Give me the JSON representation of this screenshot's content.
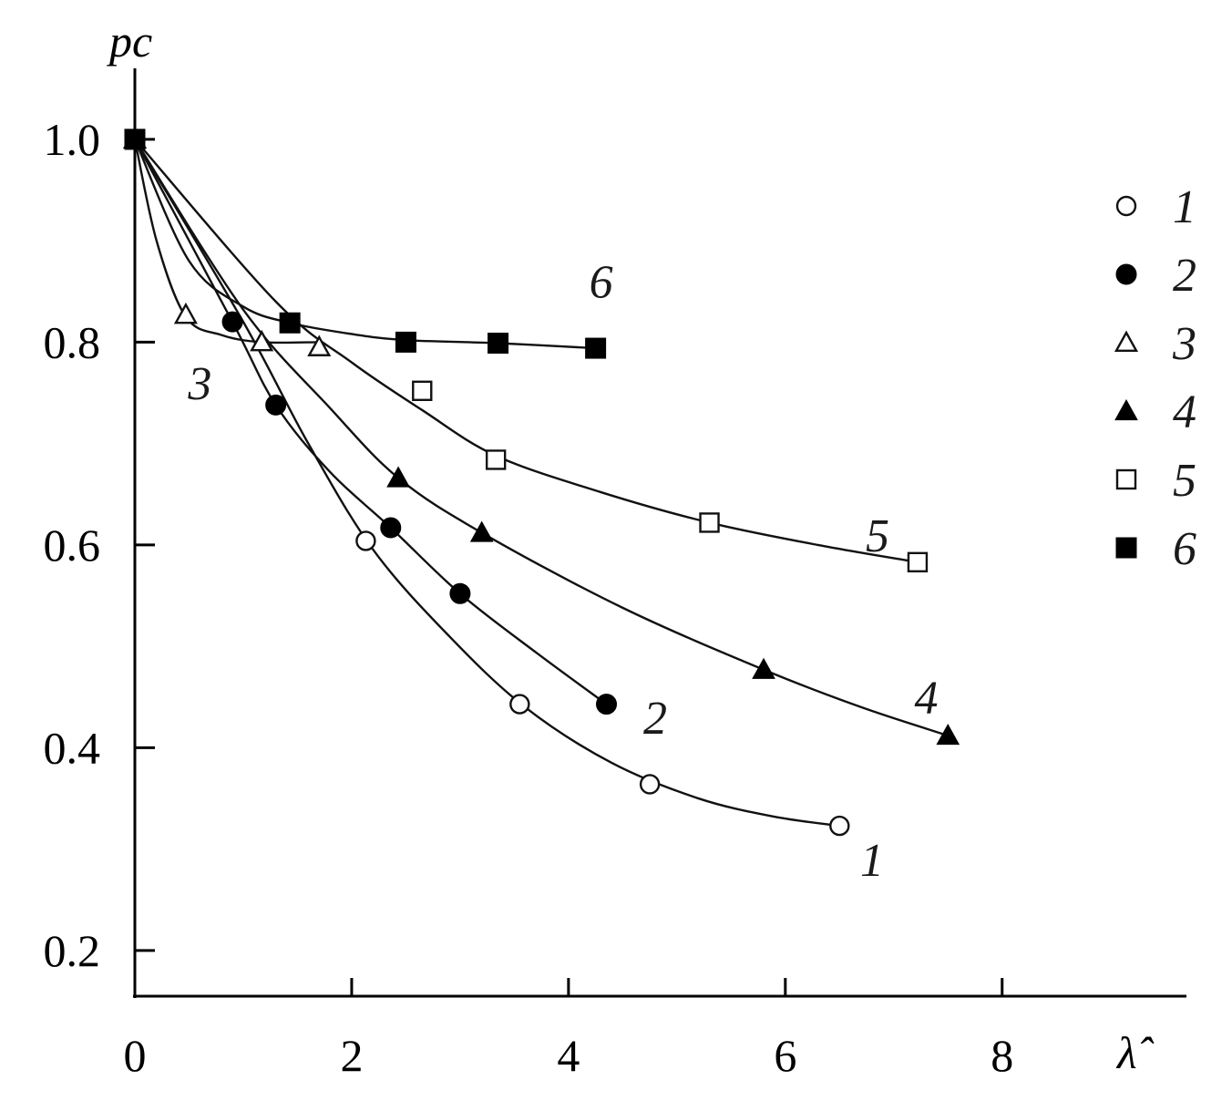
{
  "chart_data": {
    "type": "scatter",
    "xlabel": "λ̂",
    "ylabel": "pc",
    "xlim": [
      0,
      9.7
    ],
    "ylim": [
      0.155,
      1.07
    ],
    "x_ticks": [
      "0",
      "2",
      "4",
      "6",
      "8"
    ],
    "y_ticks": [
      "0.2",
      "0.4",
      "0.6",
      "0.8",
      "1.0"
    ],
    "legend_position": "right",
    "series": [
      {
        "name": "1",
        "marker": "open-circle",
        "points": [
          [
            0,
            1.0
          ],
          [
            2.13,
            0.604
          ],
          [
            3.55,
            0.443
          ],
          [
            4.75,
            0.364
          ],
          [
            6.5,
            0.323
          ]
        ],
        "curve": [
          [
            0,
            1.0
          ],
          [
            1.0,
            0.82
          ],
          [
            1.6,
            0.7
          ],
          [
            2.2,
            0.595
          ],
          [
            2.9,
            0.51
          ],
          [
            3.6,
            0.44
          ],
          [
            4.4,
            0.385
          ],
          [
            5.2,
            0.35
          ],
          [
            5.9,
            0.332
          ],
          [
            6.5,
            0.323
          ]
        ],
        "curve_label": "1",
        "curve_label_at": [
          6.8,
          0.29
        ]
      },
      {
        "name": "2",
        "marker": "filled-circle",
        "points": [
          [
            0,
            1.0
          ],
          [
            0.9,
            0.82
          ],
          [
            1.3,
            0.738
          ],
          [
            2.36,
            0.617
          ],
          [
            3.0,
            0.552
          ],
          [
            4.35,
            0.443
          ]
        ],
        "curve": [
          [
            0,
            1.0
          ],
          [
            0.9,
            0.82
          ],
          [
            1.3,
            0.738
          ],
          [
            1.8,
            0.672
          ],
          [
            2.36,
            0.617
          ],
          [
            3.0,
            0.552
          ],
          [
            3.7,
            0.494
          ],
          [
            4.35,
            0.443
          ]
        ],
        "curve_label": "2",
        "curve_label_at": [
          4.8,
          0.43
        ]
      },
      {
        "name": "3",
        "marker": "open-triangle",
        "points": [
          [
            0,
            1.0
          ],
          [
            0.47,
            0.827
          ],
          [
            1.17,
            0.8
          ],
          [
            1.7,
            0.795
          ]
        ],
        "curve": [
          [
            0,
            1.0
          ],
          [
            0.2,
            0.9
          ],
          [
            0.47,
            0.825
          ],
          [
            0.8,
            0.807
          ],
          [
            1.17,
            0.8
          ],
          [
            1.7,
            0.8
          ]
        ],
        "curve_label": "3",
        "curve_label_at": [
          0.6,
          0.76
        ]
      },
      {
        "name": "4",
        "marker": "filled-triangle",
        "points": [
          [
            0,
            1.0
          ],
          [
            2.43,
            0.666
          ],
          [
            3.2,
            0.612
          ],
          [
            5.8,
            0.477
          ],
          [
            7.5,
            0.412
          ]
        ],
        "curve": [
          [
            0,
            1.0
          ],
          [
            1.0,
            0.832
          ],
          [
            1.8,
            0.735
          ],
          [
            2.43,
            0.666
          ],
          [
            3.2,
            0.612
          ],
          [
            4.5,
            0.538
          ],
          [
            5.8,
            0.477
          ],
          [
            6.7,
            0.44
          ],
          [
            7.5,
            0.412
          ]
        ],
        "curve_label": "4",
        "curve_label_at": [
          7.3,
          0.45
        ]
      },
      {
        "name": "5",
        "marker": "open-square",
        "points": [
          [
            0,
            1.0
          ],
          [
            2.65,
            0.752
          ],
          [
            3.33,
            0.684
          ],
          [
            5.3,
            0.622
          ],
          [
            7.22,
            0.583
          ]
        ],
        "curve": [
          [
            0,
            1.0
          ],
          [
            1.3,
            0.84
          ],
          [
            2.0,
            0.78
          ],
          [
            2.65,
            0.733
          ],
          [
            3.33,
            0.688
          ],
          [
            4.3,
            0.652
          ],
          [
            5.3,
            0.622
          ],
          [
            6.3,
            0.6
          ],
          [
            7.22,
            0.583
          ]
        ],
        "curve_label": "5",
        "curve_label_at": [
          6.85,
          0.61
        ]
      },
      {
        "name": "6",
        "marker": "filled-square",
        "points": [
          [
            0,
            1.0
          ],
          [
            1.43,
            0.819
          ],
          [
            2.5,
            0.8
          ],
          [
            3.35,
            0.799
          ],
          [
            4.25,
            0.794
          ]
        ],
        "curve": [
          [
            0,
            1.0
          ],
          [
            0.5,
            0.88
          ],
          [
            1.0,
            0.835
          ],
          [
            1.43,
            0.819
          ],
          [
            2.0,
            0.808
          ],
          [
            2.5,
            0.802
          ],
          [
            3.35,
            0.799
          ],
          [
            4.25,
            0.794
          ]
        ],
        "curve_label": "6",
        "curve_label_at": [
          4.3,
          0.86
        ]
      }
    ]
  }
}
